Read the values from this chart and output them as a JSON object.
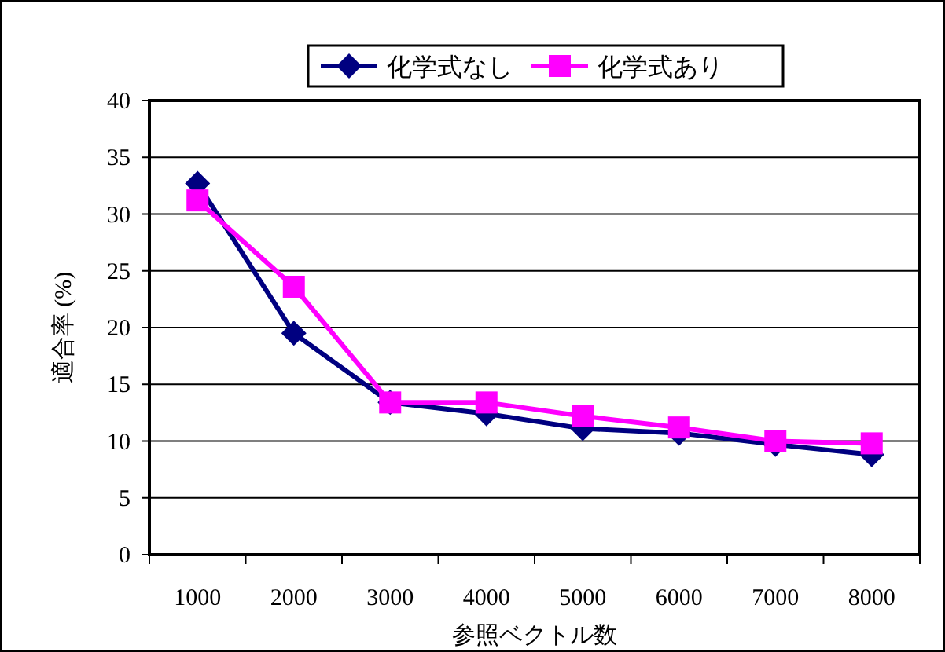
{
  "chart_data": {
    "type": "line",
    "xlabel": "参照ベクトル数",
    "ylabel": "適合率 (%)",
    "categories": [
      "1000",
      "2000",
      "3000",
      "4000",
      "5000",
      "6000",
      "7000",
      "8000"
    ],
    "series": [
      {
        "name": "化学式なし",
        "color": "#000080",
        "marker": "diamond",
        "values": [
          32.7,
          19.5,
          13.4,
          12.4,
          11.1,
          10.7,
          9.7,
          8.8
        ]
      },
      {
        "name": "化学式あり",
        "color": "#ff00ff",
        "marker": "square",
        "values": [
          31.2,
          23.6,
          13.4,
          13.4,
          12.2,
          11.2,
          10.0,
          9.8
        ]
      }
    ],
    "ylim": [
      0,
      40
    ],
    "yticks": [
      0,
      5,
      10,
      15,
      20,
      25,
      30,
      35,
      40
    ],
    "grid": "y",
    "legend": "top",
    "line_style": "solid"
  }
}
